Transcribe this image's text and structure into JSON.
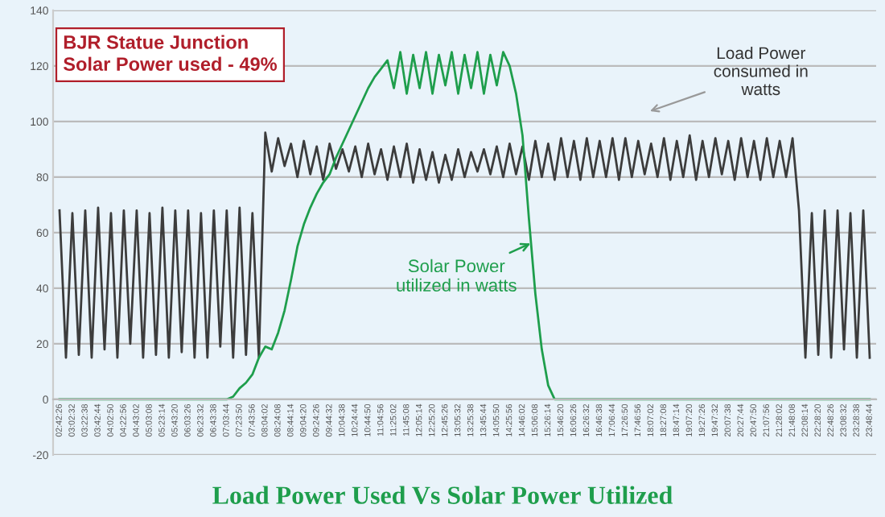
{
  "chart_data": {
    "type": "line",
    "title": "Load Power Used Vs Solar Power Utilized",
    "annotations": [
      "BJR Statue Junction\nSolar Power used - 49%",
      "Load Power\nconsumed in\nwatts",
      "Solar Power\nutilized in watts"
    ],
    "categories": [
      "02:42:26",
      null,
      "03:02:32",
      null,
      "03:22:38",
      null,
      "03:42:44",
      null,
      "04:02:50",
      null,
      "04:22:56",
      null,
      "04:43:02",
      null,
      "05:03:08",
      null,
      "05:23:14",
      null,
      "05:43:20",
      null,
      "06:03:26",
      null,
      "06:23:32",
      null,
      "06:43:38",
      null,
      "07:03:44",
      null,
      "07:23:50",
      null,
      "07:43:56",
      null,
      "08:04:02",
      null,
      "08:24:08",
      null,
      "08:44:14",
      null,
      "09:04:20",
      null,
      "09:24:26",
      null,
      "09:44:32",
      null,
      "10:04:38",
      null,
      "10:24:44",
      null,
      "10:44:50",
      null,
      "11:04:56",
      null,
      "11:25:02",
      null,
      "11:45:08",
      null,
      "12:05:14",
      null,
      "12:25:20",
      null,
      "12:45:26",
      null,
      "13:05:32",
      null,
      "13:25:38",
      null,
      "13:45:44",
      null,
      "14:05:50",
      null,
      "14:25:56",
      null,
      "14:46:02",
      null,
      "15:06:08",
      null,
      "15:26:14",
      null,
      "15:46:20",
      null,
      "16:06:26",
      null,
      "16:26:32",
      null,
      "16:46:38",
      null,
      "17:06:44",
      null,
      "17:26:50",
      null,
      "17:46:56",
      null,
      "18:07:02",
      null,
      "18:27:08",
      null,
      "18:47:14",
      null,
      "19:07:20",
      null,
      "19:27:26",
      null,
      "19:47:32",
      null,
      "20:07:38",
      null,
      "20:27:44",
      null,
      "20:47:50",
      null,
      "21:07:56",
      null,
      "21:28:02",
      null,
      "21:48:08",
      null,
      "22:08:14",
      null,
      "22:28:20",
      null,
      "22:48:26",
      null,
      "23:08:32",
      null,
      "23:28:38",
      null,
      "23:48:44"
    ],
    "series": [
      {
        "color": "#3c3c3c",
        "values": [
          68,
          15,
          67,
          16,
          68,
          15,
          69,
          18,
          67,
          15,
          68,
          20,
          68,
          15,
          67,
          16,
          69,
          15,
          68,
          17,
          68,
          15,
          67,
          15,
          68,
          19,
          68,
          15,
          69,
          16,
          67,
          15,
          96,
          82,
          94,
          84,
          92,
          80,
          93,
          81,
          91,
          79,
          92,
          83,
          90,
          82,
          91,
          80,
          92,
          81,
          90,
          79,
          91,
          80,
          92,
          78,
          90,
          79,
          89,
          78,
          88,
          79,
          90,
          80,
          89,
          82,
          90,
          81,
          91,
          80,
          92,
          81,
          91,
          79,
          93,
          80,
          92,
          79,
          94,
          80,
          93,
          79,
          94,
          80,
          93,
          80,
          94,
          79,
          94,
          80,
          93,
          81,
          92,
          80,
          94,
          79,
          93,
          80,
          95,
          79,
          93,
          80,
          94,
          81,
          93,
          79,
          94,
          80,
          93,
          79,
          94,
          80,
          93,
          80,
          94,
          68,
          15,
          67,
          16,
          68,
          15,
          68,
          18,
          67,
          15,
          68,
          15
        ]
      },
      {
        "color": "#1e9e4c",
        "values": [
          0,
          0,
          0,
          0,
          0,
          0,
          0,
          0,
          0,
          0,
          0,
          0,
          0,
          0,
          0,
          0,
          0,
          0,
          0,
          0,
          0,
          0,
          0,
          0,
          0,
          0,
          0,
          1,
          4,
          6,
          9,
          15,
          19,
          18,
          24,
          32,
          43,
          55,
          63,
          69,
          74,
          78,
          81,
          87,
          92,
          97,
          102,
          107,
          112,
          116,
          119,
          122,
          112,
          125,
          110,
          124,
          112,
          125,
          110,
          124,
          113,
          125,
          110,
          124,
          112,
          125,
          110,
          124,
          113,
          125,
          120,
          110,
          95,
          65,
          38,
          18,
          5,
          0,
          0,
          0,
          0,
          0,
          0,
          0,
          0,
          0,
          0,
          0,
          0,
          0,
          0,
          0,
          0,
          0,
          0,
          0,
          0,
          0,
          0,
          0,
          0,
          0,
          0,
          0,
          0,
          0,
          0,
          0,
          0,
          0,
          0,
          0,
          0,
          0,
          0,
          0,
          0,
          0,
          0,
          0,
          0,
          0,
          0,
          0,
          0,
          0,
          0
        ]
      }
    ],
    "ylim": [
      -20,
      140
    ],
    "yticks": [
      -20,
      0,
      20,
      40,
      60,
      80,
      100,
      120,
      140
    ],
    "grid": "y",
    "legend": false,
    "marker": "none",
    "line_style": "solid"
  }
}
